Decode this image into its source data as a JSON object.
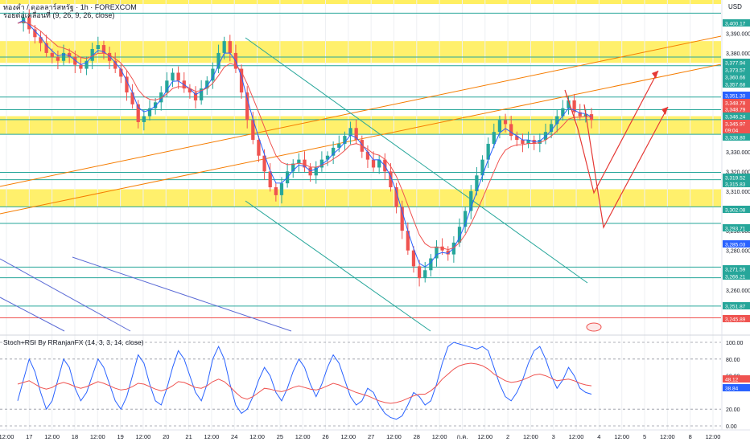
{
  "title": {
    "line1": "ทองคำ / ดอลลาร์สหรัฐ · 1h · FOREXCOM",
    "line2": "รอยต่อเคลื่อนที่ (9, 26, 9, 26, close)"
  },
  "currency": "USD",
  "chart_data": [
    {
      "type": "line",
      "panel": "price",
      "title": "ทองคำ / ดอลลาร์สหรัฐ · 1h · FOREXCOM",
      "ylim": [
        3240,
        3406
      ],
      "y_ticks": [
        3390,
        3380,
        3370,
        3330,
        3320,
        3310,
        3290,
        3280,
        3260
      ],
      "x_ticks": [
        "12:00",
        "17",
        "12:00",
        "18",
        "12:00",
        "19",
        "12:00",
        "20",
        "21",
        "12:00",
        "24",
        "12:00",
        "25",
        "12:00",
        "26",
        "12:00",
        "27",
        "12:00",
        "28",
        "12:00",
        "ก.ค.",
        "12:00",
        "2",
        "12:00",
        "3",
        "12:00",
        "4",
        "12:00",
        "5",
        "12:00",
        "8",
        "12:00"
      ],
      "price_labels": [
        {
          "value": "3,400.17",
          "color": "#26a69a"
        },
        {
          "value": "3,377.94",
          "color": "#26a69a"
        },
        {
          "value": "3,373.57",
          "color": "#26a69a"
        },
        {
          "value": "3,360.66",
          "color": "#26a69a"
        },
        {
          "value": "3,357.68",
          "color": "#26a69a"
        },
        {
          "value": "3,351.30",
          "color": "#2962ff"
        },
        {
          "value": "3,348.78",
          "color": "#ef5350"
        },
        {
          "value": "3,348.79",
          "color": "#ef5350"
        },
        {
          "value": "3,346.24",
          "color": "#26a69a"
        },
        {
          "value": "3,345.97",
          "color": "#ef5350"
        },
        {
          "value": "09:04",
          "color": "#ef5350"
        },
        {
          "value": "3,338.80",
          "color": "#26a69a"
        },
        {
          "value": "3,319.52",
          "color": "#26a69a"
        },
        {
          "value": "3,315.83",
          "color": "#26a69a"
        },
        {
          "value": "3,302.08",
          "color": "#26a69a"
        },
        {
          "value": "3,293.71",
          "color": "#26a69a"
        },
        {
          "value": "3,285.03",
          "color": "#2962ff"
        },
        {
          "value": "3,271.59",
          "color": "#26a69a"
        },
        {
          "value": "3,266.21",
          "color": "#26a69a"
        },
        {
          "value": "3,251.87",
          "color": "#26a69a"
        },
        {
          "value": "3,245.89",
          "color": "#ef5350"
        }
      ],
      "horizontal_levels": [
        3400.17,
        3377.94,
        3373.57,
        3357.68,
        3351.3,
        3346.24,
        3338.8,
        3319.52,
        3315.83,
        3302.08,
        3293.71,
        3271.59,
        3266.21,
        3251.87
      ],
      "zones": [
        [
          3375,
          3386
        ],
        [
          3338.8,
          3348
        ],
        [
          3302,
          3311
        ]
      ],
      "close_series": [
        3395,
        3398,
        3392,
        3388,
        3385,
        3380,
        3378,
        3376,
        3380,
        3378,
        3374,
        3372,
        3376,
        3382,
        3384,
        3380,
        3376,
        3372,
        3368,
        3360,
        3354,
        3345,
        3348,
        3352,
        3355,
        3360,
        3366,
        3370,
        3366,
        3362,
        3360,
        3356,
        3362,
        3366,
        3372,
        3380,
        3386,
        3380,
        3372,
        3360,
        3346,
        3336,
        3328,
        3320,
        3312,
        3308,
        3314,
        3320,
        3324,
        3326,
        3322,
        3318,
        3322,
        3326,
        3328,
        3332,
        3334,
        3338,
        3342,
        3336,
        3330,
        3326,
        3322,
        3326,
        3320,
        3312,
        3302,
        3290,
        3280,
        3272,
        3266,
        3270,
        3276,
        3282,
        3280,
        3278,
        3284,
        3292,
        3300,
        3310,
        3318,
        3326,
        3334,
        3340,
        3346,
        3344,
        3338,
        3336,
        3334,
        3336,
        3334,
        3336,
        3340,
        3344,
        3348,
        3352,
        3356,
        3350,
        3348,
        3349,
        3346
      ],
      "projection_arrows": "red zigzag projections after the last bar"
    },
    {
      "type": "line",
      "panel": "indicator",
      "title": "Stoch+RSI By RRanjanFX (14, 3, 3, 14, close)",
      "ylim": [
        0,
        100
      ],
      "y_ticks": [
        "100.00",
        "80.00",
        "60.00",
        "20.00",
        "0.00"
      ],
      "levels": [
        100,
        80,
        20,
        0
      ],
      "values_labels": [
        {
          "value": "48.12",
          "color": "#ef5350"
        },
        {
          "value": "38.84",
          "color": "#2962ff"
        }
      ],
      "series": [
        {
          "name": "Stoch",
          "color": "#2962ff",
          "values": [
            30,
            55,
            80,
            65,
            40,
            20,
            30,
            55,
            80,
            70,
            45,
            30,
            40,
            60,
            80,
            70,
            50,
            30,
            20,
            35,
            60,
            85,
            75,
            50,
            30,
            25,
            45,
            70,
            90,
            80,
            60,
            40,
            30,
            50,
            80,
            95,
            80,
            50,
            25,
            15,
            20,
            35,
            55,
            70,
            60,
            40,
            30,
            45,
            65,
            80,
            70,
            50,
            35,
            50,
            70,
            85,
            75,
            55,
            35,
            25,
            30,
            45,
            40,
            25,
            15,
            10,
            8,
            12,
            25,
            40,
            35,
            25,
            30,
            50,
            75,
            95,
            100,
            98,
            96,
            94,
            92,
            95,
            90,
            70,
            50,
            35,
            30,
            40,
            55,
            75,
            90,
            95,
            80,
            60,
            45,
            55,
            70,
            60,
            45,
            40,
            38
          ]
        },
        {
          "name": "RSI",
          "color": "#ef5350",
          "values": [
            50,
            52,
            54,
            50,
            46,
            44,
            46,
            50,
            52,
            50,
            47,
            45,
            47,
            50,
            53,
            51,
            48,
            45,
            43,
            44,
            47,
            51,
            50,
            47,
            44,
            42,
            44,
            48,
            53,
            52,
            49,
            46,
            45,
            48,
            53,
            56,
            53,
            47,
            40,
            34,
            32,
            35,
            40,
            45,
            44,
            42,
            41,
            43,
            46,
            48,
            46,
            44,
            43,
            45,
            48,
            51,
            49,
            46,
            43,
            40,
            38,
            36,
            33,
            30,
            28,
            27,
            28,
            30,
            33,
            36,
            38,
            38,
            42,
            48,
            56,
            62,
            68,
            72,
            74,
            75,
            74,
            72,
            68,
            62,
            58,
            54,
            52,
            53,
            55,
            58,
            61,
            62,
            60,
            57,
            54,
            55,
            56,
            54,
            51,
            49,
            48
          ]
        }
      ]
    }
  ]
}
